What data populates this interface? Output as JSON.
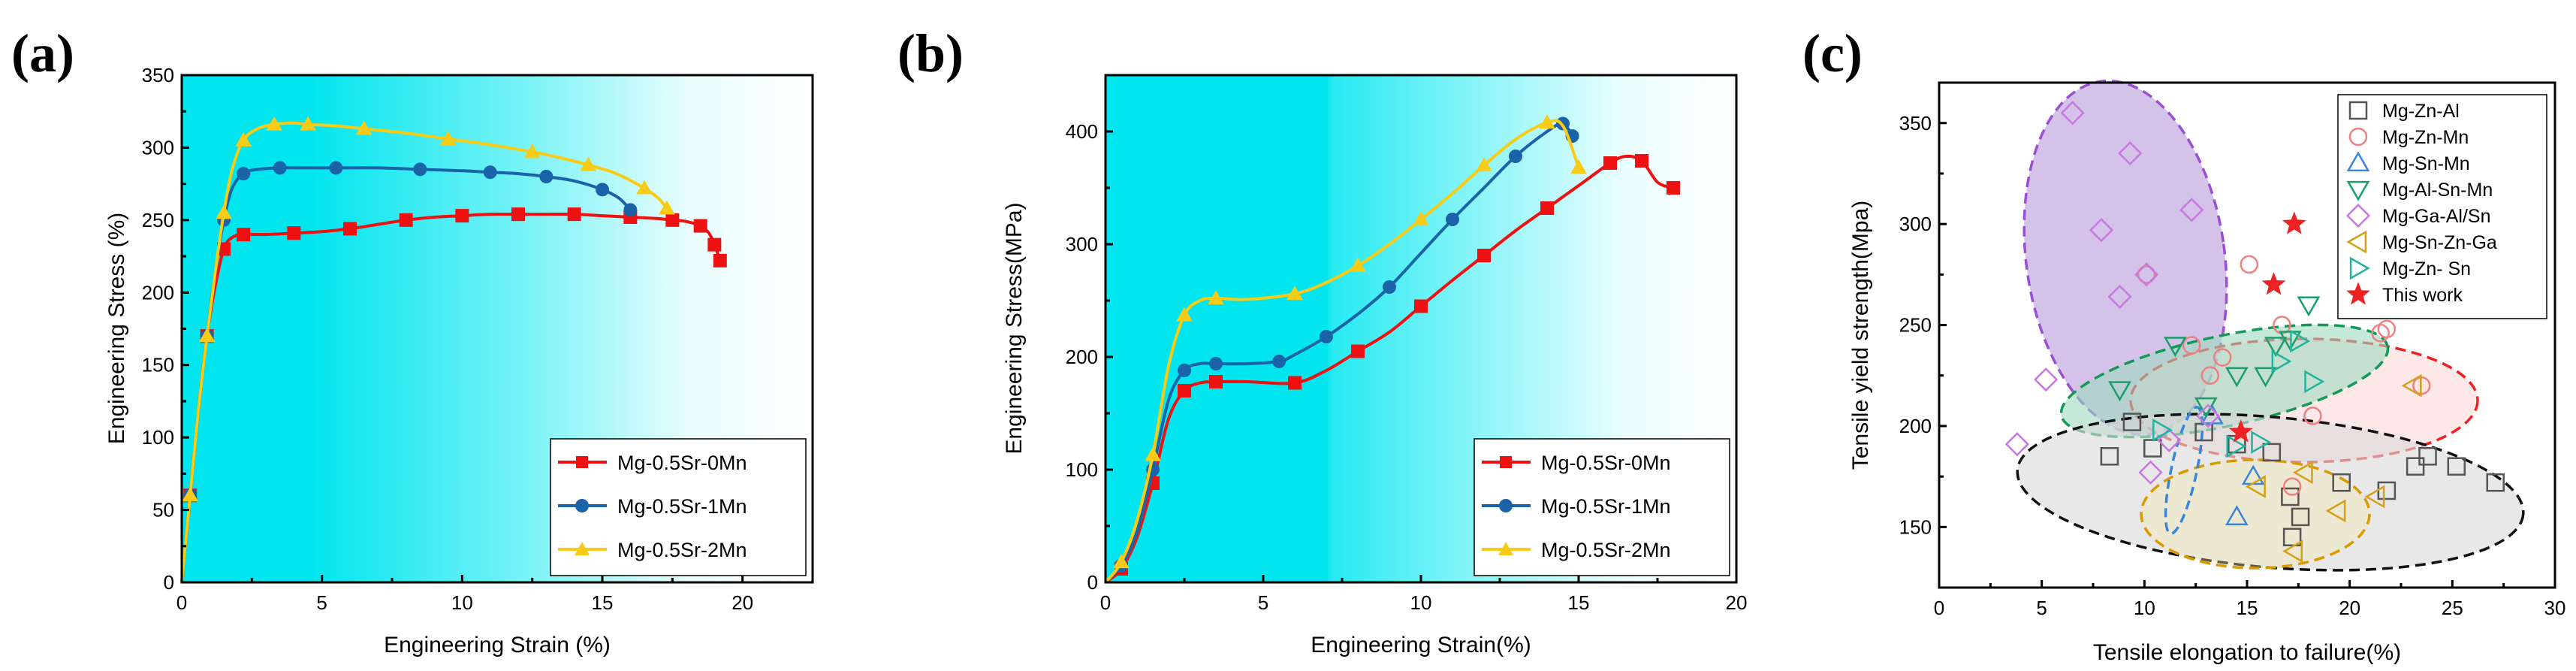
{
  "colors": {
    "red": "#ee1111",
    "blue": "#1a63a8",
    "yellow": "#f7cb16",
    "cyan": "#00e5ee"
  },
  "chart_data": [
    {
      "type": "line",
      "panel_label": "(a)",
      "xlabel": "Engineering Strain (%)",
      "ylabel": "Engineering Stress (%)",
      "xlim": [
        0,
        22.5
      ],
      "ylim": [
        0,
        350
      ],
      "xticks": [
        0,
        5,
        10,
        15,
        20
      ],
      "yticks": [
        0,
        50,
        100,
        150,
        200,
        250,
        300,
        350
      ],
      "legend": "bottom-right",
      "series": [
        {
          "name": "Mg-0.5Sr-0Mn",
          "color": "#ee1111",
          "marker": "square",
          "x": [
            0,
            0.3,
            0.6,
            0.9,
            1.2,
            1.5,
            1.8,
            2.2,
            3,
            4,
            5,
            6,
            7,
            8,
            9,
            10,
            11,
            12,
            13,
            14,
            15,
            16,
            17,
            17.5,
            18,
            18.5,
            18.8,
            19,
            19.2
          ],
          "y": [
            0,
            60,
            120,
            170,
            205,
            230,
            238,
            240,
            240,
            241,
            242,
            244,
            247,
            250,
            252,
            253,
            254,
            254,
            254,
            254,
            253,
            252,
            251,
            250,
            249,
            246,
            241,
            233,
            222
          ]
        },
        {
          "name": "Mg-0.5Sr-1Mn",
          "color": "#1a63a8",
          "marker": "circle",
          "x": [
            0,
            0.3,
            0.6,
            0.9,
            1.2,
            1.5,
            1.8,
            2.2,
            2.7,
            3.5,
            4.5,
            5.5,
            7,
            8.5,
            10,
            11,
            12,
            13,
            14,
            15,
            15.6,
            16
          ],
          "y": [
            0,
            60,
            120,
            170,
            215,
            250,
            272,
            282,
            285,
            286,
            286,
            286,
            286,
            285,
            284,
            283,
            282,
            280,
            277,
            271,
            265,
            257
          ]
        },
        {
          "name": "Mg-0.5Sr-2Mn",
          "color": "#f7cb16",
          "marker": "triangle",
          "x": [
            0,
            0.3,
            0.6,
            0.9,
            1.2,
            1.5,
            1.8,
            2.2,
            2.7,
            3.3,
            4,
            4.5,
            5.5,
            6.5,
            8,
            9.5,
            11,
            12.5,
            13.5,
            14.5,
            15.5,
            16.5,
            17,
            17.3
          ],
          "y": [
            0,
            60,
            120,
            170,
            215,
            255,
            285,
            305,
            313,
            316,
            317,
            316,
            315,
            313,
            310,
            306,
            302,
            297,
            293,
            288,
            282,
            272,
            265,
            258
          ]
        }
      ]
    },
    {
      "type": "line",
      "panel_label": "(b)",
      "xlabel": "Engineering Strain(%)",
      "ylabel": "Engineering Stress(MPa)",
      "xlim": [
        0,
        20
      ],
      "ylim": [
        0,
        450
      ],
      "xticks": [
        0,
        5,
        10,
        15,
        20
      ],
      "yticks": [
        0,
        100,
        200,
        300,
        400
      ],
      "legend": "bottom-right",
      "series": [
        {
          "name": "Mg-0.5Sr-0Mn",
          "color": "#ee1111",
          "marker": "square",
          "x": [
            0,
            0.5,
            1,
            1.5,
            2,
            2.5,
            3,
            3.5,
            4.5,
            6,
            7,
            8,
            9,
            10,
            11,
            12,
            13,
            14,
            15,
            16,
            16.5,
            17,
            17.5,
            18
          ],
          "y": [
            0,
            12,
            40,
            88,
            145,
            170,
            177,
            178,
            178,
            177,
            188,
            205,
            222,
            245,
            268,
            290,
            312,
            332,
            352,
            372,
            378,
            374,
            355,
            350
          ]
        },
        {
          "name": "Mg-0.5Sr-1Mn",
          "color": "#1a63a8",
          "marker": "circle",
          "x": [
            0,
            0.5,
            1,
            1.5,
            2,
            2.5,
            3,
            3.5,
            4.5,
            5.5,
            6,
            7,
            8,
            9,
            10,
            11,
            12,
            13,
            14,
            14.5,
            14.8
          ],
          "y": [
            0,
            15,
            45,
            100,
            162,
            188,
            194,
            194,
            194,
            196,
            202,
            218,
            238,
            262,
            292,
            322,
            350,
            378,
            400,
            407,
            396
          ]
        },
        {
          "name": "Mg-0.5Sr-2Mn",
          "color": "#f7cb16",
          "marker": "triangle",
          "x": [
            0,
            0.5,
            1,
            1.5,
            2,
            2.5,
            3,
            3.5,
            4.5,
            6,
            7,
            8,
            9,
            10,
            11,
            12,
            13,
            14,
            14.5,
            15
          ],
          "y": [
            0,
            18,
            55,
            113,
            192,
            237,
            250,
            252,
            251,
            256,
            266,
            281,
            300,
            322,
            345,
            370,
            393,
            408,
            405,
            368
          ]
        }
      ]
    },
    {
      "type": "scatter",
      "panel_label": "(c)",
      "xlabel": "Tensile elongation to failure(%)",
      "ylabel": "Tensile yield strength(Mpa)",
      "xlim": [
        0,
        30
      ],
      "ylim": [
        120,
        370
      ],
      "xticks": [
        0,
        5,
        10,
        15,
        20,
        25,
        30
      ],
      "yticks": [
        150,
        200,
        250,
        300,
        350
      ],
      "legend": "top-right",
      "series": [
        {
          "name": "Mg-Zn-Al",
          "color": "#555555",
          "marker": "square",
          "x": [
            8.3,
            9.4,
            10.4,
            12.9,
            14.5,
            16.2,
            17.2,
            17.6,
            17.1,
            19.6,
            21.8,
            23.2,
            23.8,
            25.2,
            27.1
          ],
          "y": [
            185,
            202,
            189,
            197,
            191,
            187,
            145,
            155,
            165,
            172,
            168,
            180,
            185,
            180,
            172
          ]
        },
        {
          "name": "Mg-Zn-Mn",
          "color": "#f08080",
          "marker": "circle",
          "x": [
            10.1,
            12.3,
            13.2,
            13.8,
            15.1,
            16.7,
            17.2,
            18.2,
            21.5,
            21.8,
            23.5
          ],
          "y": [
            275,
            240,
            225,
            234,
            280,
            250,
            170,
            205,
            246,
            248,
            220
          ]
        },
        {
          "name": "Mg-Sn-Mn",
          "color": "#3a86d6",
          "marker": "triangle",
          "x": [
            13.3,
            14.5,
            15.3
          ],
          "y": [
            205,
            155,
            175
          ]
        },
        {
          "name": "Mg-Al-Sn-Mn",
          "color": "#1a9e6a",
          "marker": "triangle-down",
          "x": [
            8.8,
            11.5,
            13.0,
            14.5,
            15.9,
            16.4,
            17.1,
            18.0
          ],
          "y": [
            218,
            240,
            210,
            225,
            225,
            240,
            243,
            260
          ]
        },
        {
          "name": "Mg-Ga-Al/Sn",
          "color": "#c878e0",
          "marker": "diamond",
          "x": [
            3.8,
            5.2,
            6.5,
            7.9,
            8.8,
            9.3,
            10.1,
            10.3,
            11.2,
            12.3,
            13.1
          ],
          "y": [
            191,
            223,
            355,
            297,
            264,
            335,
            275,
            177,
            193,
            307,
            205
          ]
        },
        {
          "name": "Mg-Sn-Zn-Ga",
          "color": "#d4a017",
          "marker": "triangle-left",
          "x": [
            15.5,
            17.3,
            17.8,
            19.4,
            21.3,
            23.1
          ],
          "y": [
            170,
            138,
            177,
            158,
            165,
            220
          ]
        },
        {
          "name": "Mg-Zn- Sn",
          "color": "#1fb3a0",
          "marker": "triangle-right",
          "x": [
            10.8,
            14.4,
            15.6,
            16.6,
            17.5,
            18.2
          ],
          "y": [
            198,
            190,
            192,
            232,
            242,
            222
          ]
        },
        {
          "name": "This work",
          "color": "#ee2222",
          "marker": "star",
          "x": [
            14.7,
            16.3,
            17.3
          ],
          "y": [
            197,
            270,
            300
          ]
        }
      ]
    }
  ]
}
